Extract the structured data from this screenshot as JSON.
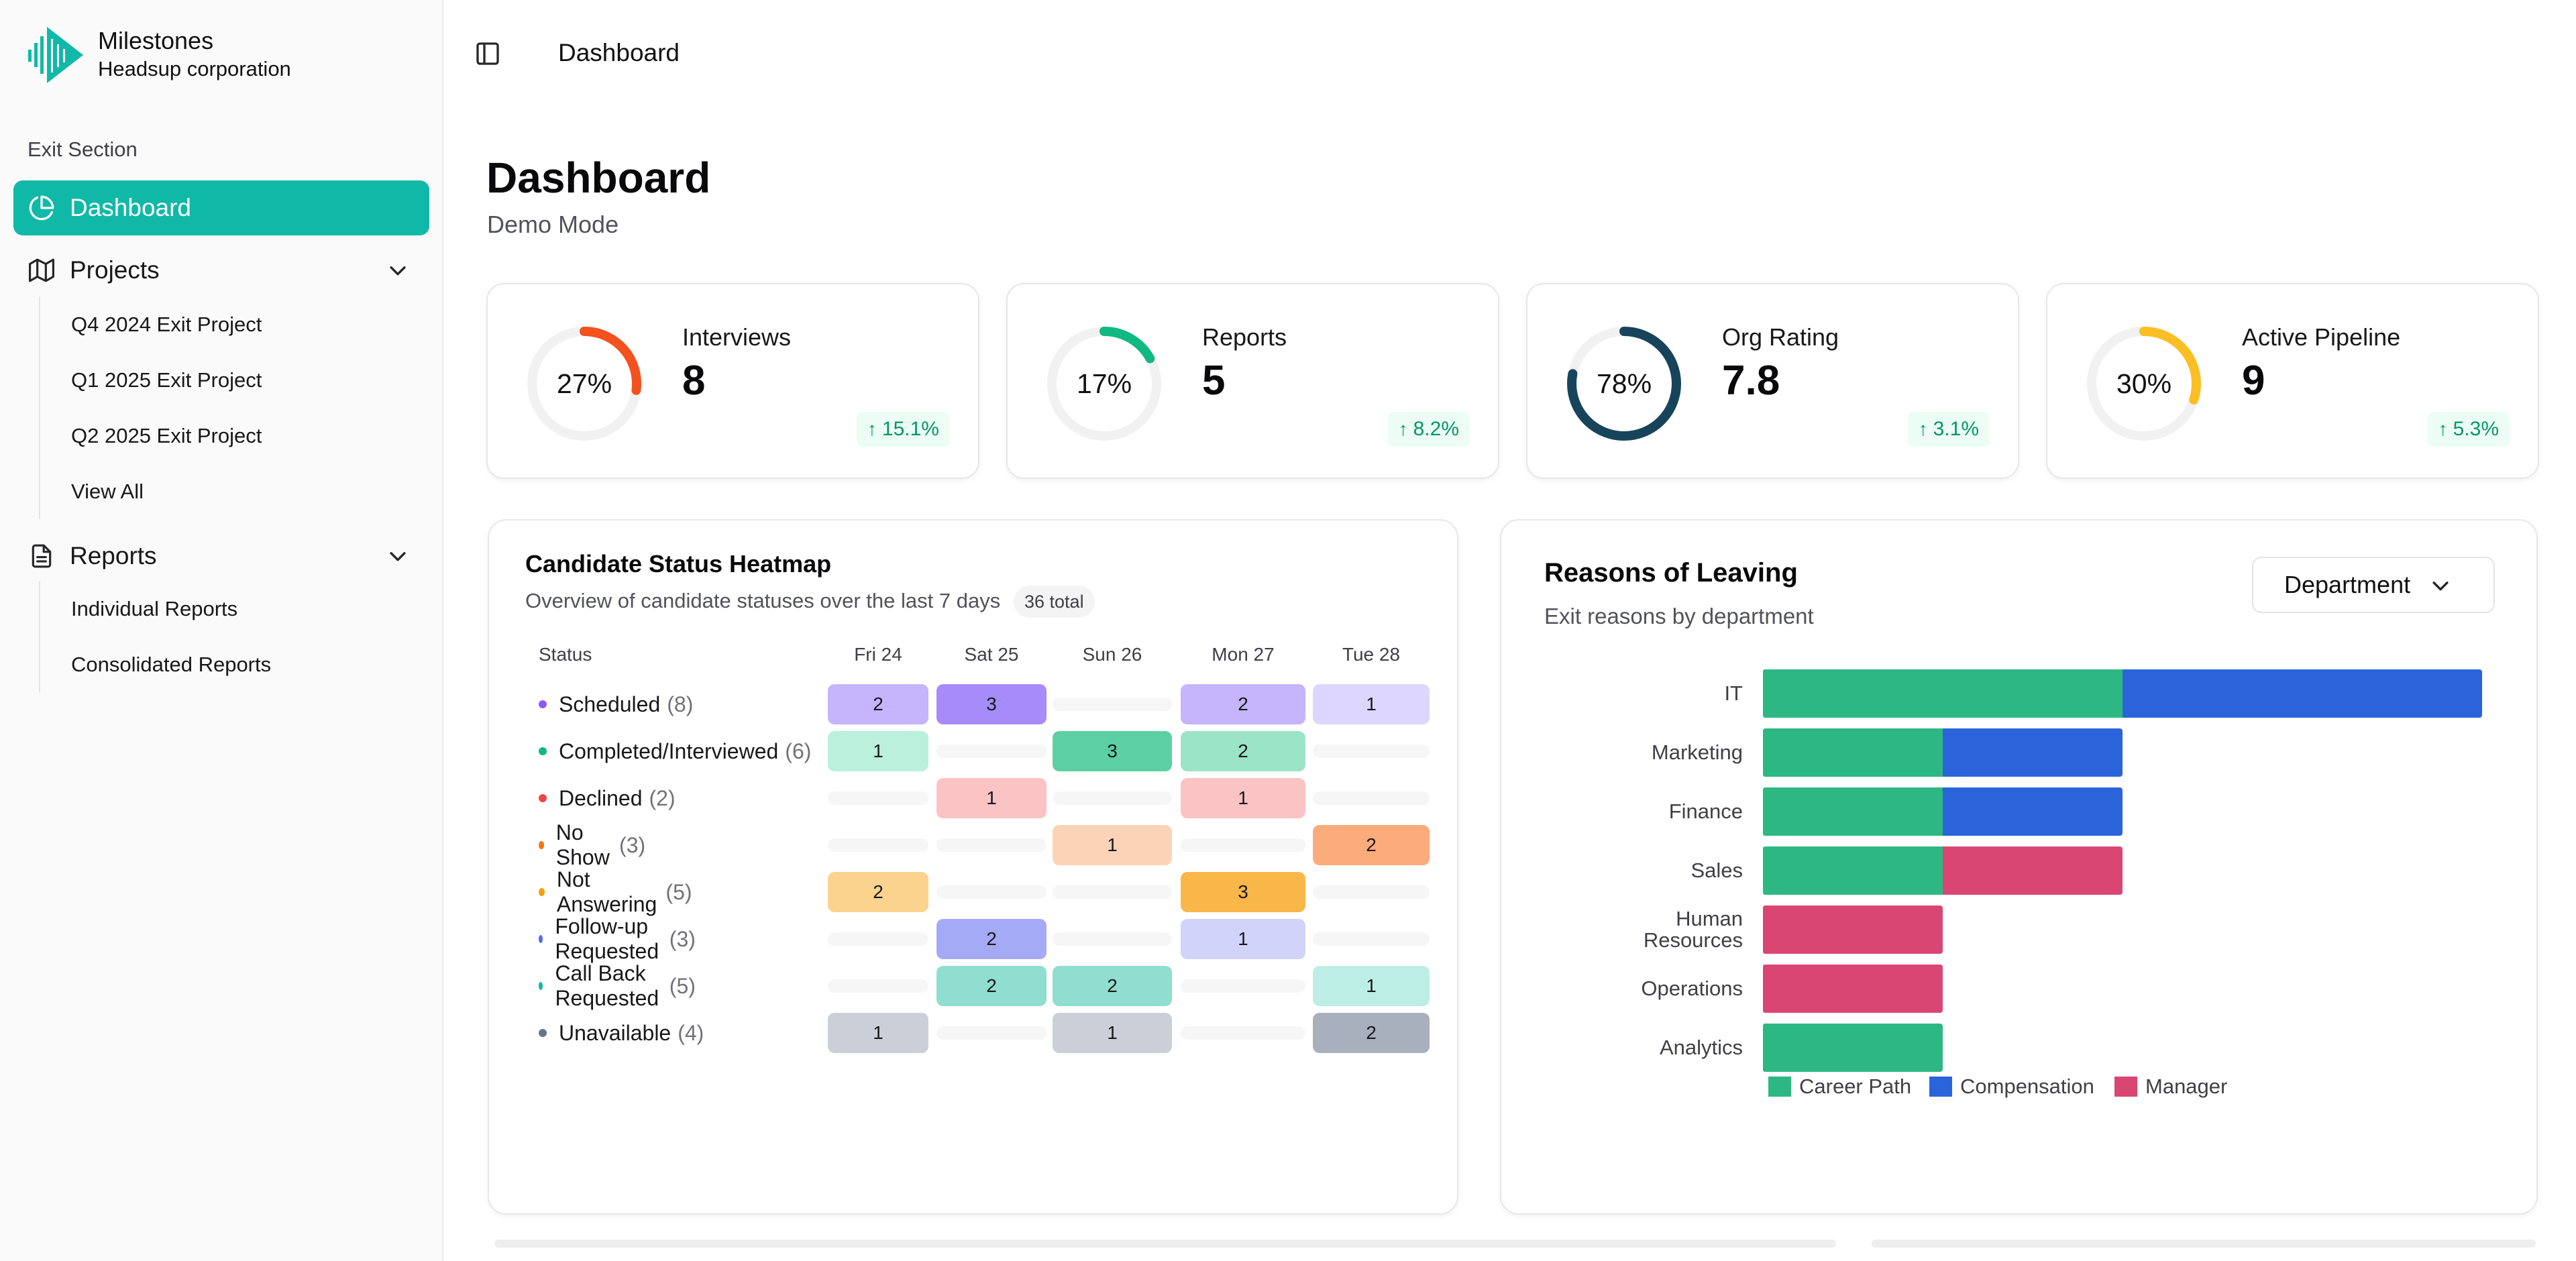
{
  "brand": {
    "name": "Milestones",
    "org": "Headsup corporation"
  },
  "sidebar": {
    "section_label": "Exit Section",
    "dashboard_label": "Dashboard",
    "projects": {
      "label": "Projects",
      "items": [
        "Q4 2024 Exit Project",
        "Q1 2025 Exit Project",
        "Q2 2025 Exit Project",
        "View All"
      ]
    },
    "reports": {
      "label": "Reports",
      "items": [
        "Individual Reports",
        "Consolidated Reports"
      ]
    }
  },
  "topbar": {
    "title": "Dashboard"
  },
  "page": {
    "title": "Dashboard",
    "subtitle": "Demo Mode"
  },
  "stats": [
    {
      "title": "Interviews",
      "value": "8",
      "percent_label": "27%",
      "percent": 27,
      "trend": "15.1%",
      "color": "#f4511e"
    },
    {
      "title": "Reports",
      "value": "5",
      "percent_label": "17%",
      "percent": 17,
      "trend": "8.2%",
      "color": "#10b981"
    },
    {
      "title": "Org Rating",
      "value": "7.8",
      "percent_label": "78%",
      "percent": 78,
      "trend": "3.1%",
      "color": "#17445a"
    },
    {
      "title": "Active Pipeline",
      "value": "9",
      "percent_label": "30%",
      "percent": 30,
      "trend": "5.3%",
      "color": "#fbbf24"
    }
  ],
  "heatmap": {
    "title": "Candidate Status Heatmap",
    "subtitle": "Overview of candidate statuses over the last 7 days",
    "badge": "36 total",
    "status_header": "Status",
    "days": [
      "Fri 24",
      "Sat 25",
      "Sun 26",
      "Mon 27",
      "Tue 28"
    ],
    "rows": [
      {
        "label": "Scheduled",
        "count": "(8)",
        "dot": "#8b5cf6",
        "values": [
          2,
          3,
          0,
          2,
          1
        ],
        "colors": [
          "#c4b5fd",
          "#a78bfa",
          "",
          "#c4b5fd",
          "#ddd6fe"
        ]
      },
      {
        "label": "Completed/Interviewed",
        "count": "(6)",
        "dot": "#10b981",
        "values": [
          1,
          0,
          3,
          2,
          0
        ],
        "colors": [
          "#bbf0dc",
          "",
          "#5cd0a2",
          "#9ce4c7",
          ""
        ]
      },
      {
        "label": "Declined",
        "count": "(2)",
        "dot": "#ef4444",
        "values": [
          0,
          1,
          0,
          1,
          0
        ],
        "colors": [
          "",
          "#fbc3c3",
          "",
          "#fbc3c3",
          ""
        ]
      },
      {
        "label": "No Show",
        "count": "(3)",
        "dot": "#f97316",
        "values": [
          0,
          0,
          1,
          0,
          2
        ],
        "colors": [
          "",
          "",
          "#fdd3b7",
          "",
          "#fcab7a"
        ]
      },
      {
        "label": "Not Answering",
        "count": "(5)",
        "dot": "#f59e0b",
        "values": [
          2,
          0,
          0,
          3,
          0
        ],
        "colors": [
          "#fcd38e",
          "",
          "",
          "#f9b74a",
          ""
        ]
      },
      {
        "label": "Follow-up Requested",
        "count": "(3)",
        "dot": "#4f6fe6",
        "values": [
          0,
          2,
          0,
          1,
          0
        ],
        "colors": [
          "",
          "#a5aaf7",
          "",
          "#d2d3fb",
          ""
        ]
      },
      {
        "label": "Call Back Requested",
        "count": "(5)",
        "dot": "#14b8a6",
        "values": [
          0,
          2,
          2,
          0,
          1
        ],
        "colors": [
          "",
          "#8fdecf",
          "#8fdecf",
          "",
          "#bdeee5"
        ]
      },
      {
        "label": "Unavailable",
        "count": "(4)",
        "dot": "#64748b",
        "values": [
          1,
          0,
          1,
          0,
          2
        ],
        "colors": [
          "#cbd0d8",
          "",
          "#cbd0d8",
          "",
          "#a8b0bd"
        ]
      }
    ]
  },
  "reasons": {
    "title": "Reasons of Leaving",
    "subtitle": "Exit reasons by department",
    "select_value": "Department"
  },
  "chart_data": {
    "type": "bar",
    "orientation": "horizontal",
    "stacked": true,
    "categories": [
      "IT",
      "Marketing",
      "Finance",
      "Sales",
      "Human Resources",
      "Operations",
      "Analytics"
    ],
    "series": [
      {
        "name": "Career Path",
        "color": "#2db883",
        "values": [
          2,
          1,
          1,
          1,
          0,
          0,
          1
        ]
      },
      {
        "name": "Compensation",
        "color": "#2b63db",
        "values": [
          2,
          1,
          1,
          0,
          0,
          0,
          0
        ]
      },
      {
        "name": "Manager",
        "color": "#d94674",
        "values": [
          0,
          0,
          0,
          1,
          1,
          1,
          0
        ]
      }
    ],
    "xlim": [
      0,
      4
    ],
    "legend": "bottom",
    "grid": false
  }
}
